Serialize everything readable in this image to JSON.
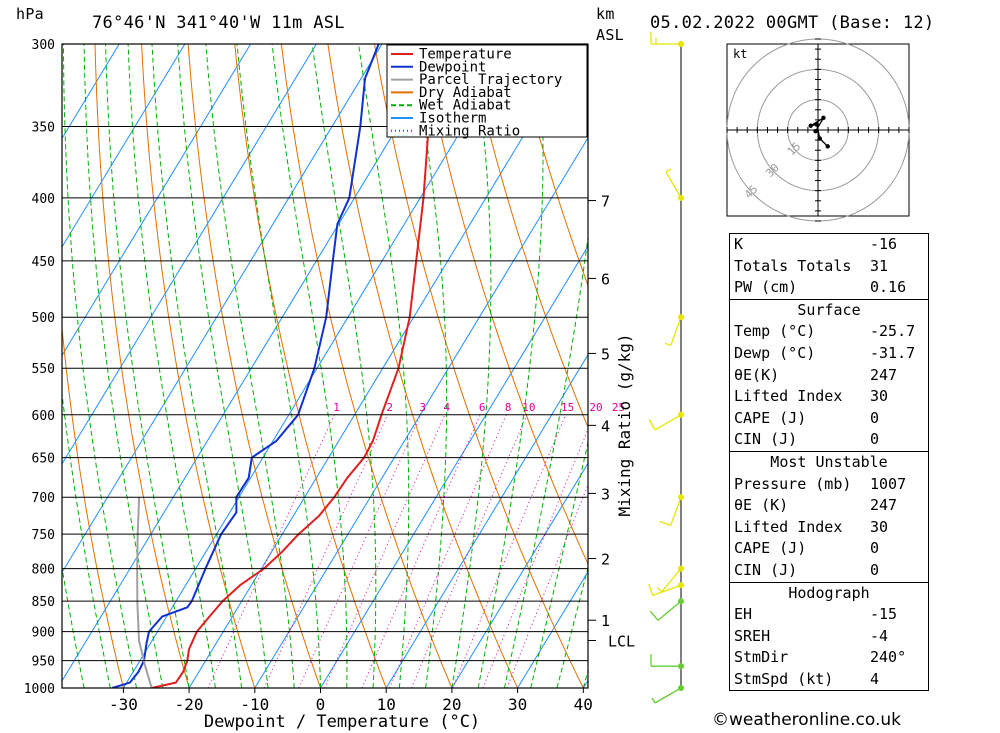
{
  "header": {
    "pressure_unit": "hPa",
    "location": "76°46'N  341°40'W  11m  ASL",
    "km_label": "km",
    "asl_label": "ASL",
    "datetime": "05.02.2022  00GMT  (Base: 12)"
  },
  "chart_data": {
    "type": "skew-t",
    "xlabel": "Dewpoint / Temperature (°C)",
    "ylabel": "hPa",
    "right_axis_label": "km ASL",
    "mixing_ratio_label": "Mixing Ratio (g/kg)",
    "pressure_ticks": [
      300,
      350,
      400,
      450,
      500,
      550,
      600,
      650,
      700,
      750,
      800,
      850,
      900,
      950,
      1000
    ],
    "temperature_ticks": [
      -30,
      -20,
      -10,
      0,
      10,
      20,
      30,
      40
    ],
    "xlim": [
      -40,
      40
    ],
    "ylim": [
      1000,
      300
    ],
    "height_ticks_km": [
      1,
      2,
      3,
      4,
      5,
      6,
      7
    ],
    "height_tick_pressures": [
      881,
      785,
      695,
      612,
      535,
      465,
      402
    ],
    "lcl_label": "LCL",
    "lcl_pressure": 915,
    "mixing_ratio_values": [
      1,
      2,
      3,
      4,
      6,
      8,
      10,
      15,
      20,
      25
    ],
    "legend": [
      {
        "name": "Temperature",
        "color": "#e02020"
      },
      {
        "name": "Dewpoint",
        "color": "#1030d0"
      },
      {
        "name": "Parcel Trajectory",
        "color": "#a0a0a0"
      },
      {
        "name": "Dry Adiabat",
        "color": "#e07000"
      },
      {
        "name": "Wet Adiabat",
        "color": "#00b000"
      },
      {
        "name": "Isotherm",
        "color": "#1e90ff"
      },
      {
        "name": "Mixing Ratio",
        "color": "#e000a0"
      }
    ],
    "series": [
      {
        "name": "Temperature",
        "points": [
          [
            1000,
            -25.7
          ],
          [
            990,
            -22.5
          ],
          [
            970,
            -22.4
          ],
          [
            950,
            -22.8
          ],
          [
            930,
            -23.6
          ],
          [
            900,
            -24.0
          ],
          [
            875,
            -23.5
          ],
          [
            850,
            -22.9
          ],
          [
            825,
            -21.7
          ],
          [
            800,
            -19.6
          ],
          [
            775,
            -18.4
          ],
          [
            750,
            -17.5
          ],
          [
            725,
            -16.1
          ],
          [
            700,
            -15.5
          ],
          [
            675,
            -15.3
          ],
          [
            650,
            -14.6
          ],
          [
            630,
            -14.8
          ],
          [
            600,
            -15.9
          ],
          [
            550,
            -17.6
          ],
          [
            500,
            -20.6
          ],
          [
            450,
            -24.8
          ],
          [
            400,
            -29.5
          ],
          [
            350,
            -35.3
          ],
          [
            300,
            -41.8
          ]
        ]
      },
      {
        "name": "Dewpoint",
        "points": [
          [
            1000,
            -31.7
          ],
          [
            990,
            -29.5
          ],
          [
            970,
            -29.2
          ],
          [
            950,
            -29.4
          ],
          [
            920,
            -30.6
          ],
          [
            900,
            -31.3
          ],
          [
            875,
            -30.7
          ],
          [
            860,
            -27.7
          ],
          [
            850,
            -27.6
          ],
          [
            800,
            -28.5
          ],
          [
            750,
            -29.3
          ],
          [
            720,
            -29.0
          ],
          [
            700,
            -30.4
          ],
          [
            675,
            -30.3
          ],
          [
            650,
            -31.7
          ],
          [
            630,
            -29.5
          ],
          [
            600,
            -28.6
          ],
          [
            550,
            -30.4
          ],
          [
            500,
            -33.3
          ],
          [
            450,
            -37.5
          ],
          [
            420,
            -40.2
          ],
          [
            400,
            -40.8
          ],
          [
            350,
            -45.7
          ],
          [
            320,
            -49.4
          ],
          [
            300,
            -50.5
          ]
        ]
      },
      {
        "name": "Parcel Trajectory",
        "points": [
          [
            1000,
            -25.7
          ],
          [
            960,
            -28.7
          ],
          [
            915,
            -32.0
          ],
          [
            850,
            -35.9
          ],
          [
            800,
            -38.9
          ],
          [
            750,
            -42.0
          ],
          [
            700,
            -45.2
          ]
        ]
      }
    ],
    "wind_barbs": [
      {
        "pressure": 1000,
        "dir": 240,
        "speed": 5
      },
      {
        "pressure": 960,
        "dir": 270,
        "speed": 10
      },
      {
        "pressure": 850,
        "dir": 230,
        "speed": 10
      },
      {
        "pressure": 825,
        "dir": 250,
        "speed": 10
      },
      {
        "pressure": 800,
        "dir": 220,
        "speed": 5
      },
      {
        "pressure": 700,
        "dir": 200,
        "speed": 10
      },
      {
        "pressure": 600,
        "dir": 240,
        "speed": 10
      },
      {
        "pressure": 500,
        "dir": 200,
        "speed": 5
      },
      {
        "pressure": 400,
        "dir": 330,
        "speed": 5
      },
      {
        "pressure": 300,
        "dir": 270,
        "speed": 15
      }
    ],
    "hodograph": {
      "unit_label": "kt",
      "ring_labels": [
        "15",
        "30",
        "45"
      ],
      "points_uv": [
        [
          1.6,
          -2.7
        ],
        [
          0.3,
          -1.4
        ],
        [
          -0.2,
          0.9
        ],
        [
          -1.2,
          0.7
        ],
        [
          0.9,
          2.0
        ],
        [
          -0.4,
          -0.2
        ]
      ]
    }
  },
  "indices": {
    "basic": [
      {
        "label": "K",
        "value": "-16"
      },
      {
        "label": "Totals Totals",
        "value": "31"
      },
      {
        "label": "PW (cm)",
        "value": "0.16"
      }
    ],
    "surface": {
      "title": "Surface",
      "rows": [
        {
          "label": "Temp (°C)",
          "value": "-25.7"
        },
        {
          "label": "Dewp (°C)",
          "value": "-31.7"
        },
        {
          "label": "θE(K)",
          "value": "247"
        },
        {
          "label": "Lifted Index",
          "value": "30"
        },
        {
          "label": "CAPE (J)",
          "value": "0"
        },
        {
          "label": "CIN (J)",
          "value": "0"
        }
      ]
    },
    "most_unstable": {
      "title": "Most Unstable",
      "rows": [
        {
          "label": "Pressure (mb)",
          "value": "1007"
        },
        {
          "label": "θE (K)",
          "value": "247"
        },
        {
          "label": "Lifted Index",
          "value": "30"
        },
        {
          "label": "CAPE (J)",
          "value": "0"
        },
        {
          "label": "CIN (J)",
          "value": "0"
        }
      ]
    },
    "hodograph": {
      "title": "Hodograph",
      "rows": [
        {
          "label": "EH",
          "value": "-15"
        },
        {
          "label": "SREH",
          "value": "-4"
        },
        {
          "label": "StmDir",
          "value": "240°"
        },
        {
          "label": "StmSpd (kt)",
          "value": "4"
        }
      ]
    }
  },
  "footer": {
    "copyright_symbol": "©",
    "site": "weatheronline.co.uk"
  }
}
